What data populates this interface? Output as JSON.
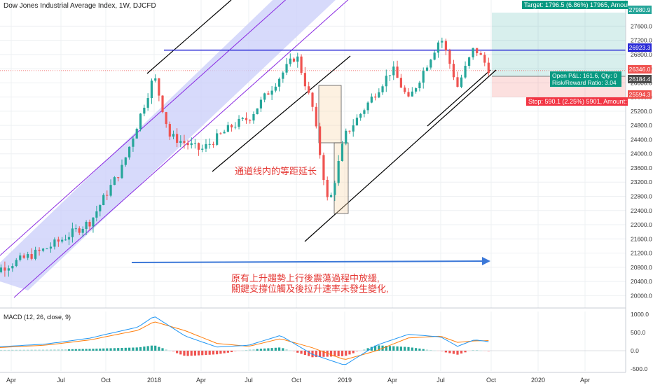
{
  "header": {
    "title": "Dow Jones Industrial Average Index, 1W, DJCFD"
  },
  "macd_label": "MACD (12, 26, close, 9)",
  "annotations": {
    "channel_note": "通道线内的等距延长",
    "summary_line1": "原有上升趨勢上行後震蕩過程中放緩,",
    "summary_line2": "關鍵支撐位觸及後拉升速率未發生變化,"
  },
  "position_tool": {
    "target_text": "Target: 1796.5 (6.86%) 17965, Amount:",
    "open_pl_text": "Open P&L: 161.6, Qty: 0",
    "risk_reward_text": "Risk/Reward Ratio: 3.04",
    "stop_text": "Stop: 590.1 (2.25%) 5901, Amount:"
  },
  "price_tags": [
    {
      "value": "27980.9",
      "color": "#26a69a"
    },
    {
      "value": "26923.3",
      "color": "#2a2ad6"
    },
    {
      "value": "26346.0",
      "color": "#ef5350"
    },
    {
      "value": "26184.4",
      "color": "#4a4a4a"
    },
    {
      "value": "25594.3",
      "color": "#ef5350"
    }
  ],
  "colors": {
    "up": "#26a69a",
    "down": "#ef5350",
    "channel": "#8a2be2",
    "channel_fill": "#c9cdfa",
    "hline": "#2a2ad6",
    "arrow": "#3c78d8",
    "macd_line": "#2196f3",
    "signal_line": "#ff7f0e"
  },
  "chart_data": [
    {
      "type": "candlestick",
      "title": "Dow Jones Industrial Average Index, 1W, DJCFD",
      "xlabel": "",
      "ylabel": "",
      "x_ticks": [
        "Apr",
        "Jul",
        "Oct",
        "2018",
        "Apr",
        "Jul",
        "Oct",
        "2019",
        "Apr",
        "Jul",
        "Oct",
        "2020",
        "Apr"
      ],
      "y_ticks": [
        20000,
        20400,
        20800,
        21200,
        21600,
        22000,
        22400,
        22800,
        23200,
        23600,
        24000,
        24400,
        24800,
        25200,
        25600,
        26000,
        26400,
        26800,
        27200,
        27600
      ],
      "ylim": [
        19750,
        28100
      ],
      "key_levels": {
        "horizontal_resistance": 26923.3,
        "last_close": 26346.0,
        "entry": 26184.4,
        "target": 27980.9,
        "stop": 25594.3
      },
      "anchors": [
        {
          "date": "2017-03",
          "price": 20700
        },
        {
          "date": "2017-06",
          "price": 21300
        },
        {
          "date": "2017-09",
          "price": 22100
        },
        {
          "date": "2017-11",
          "price": 23600
        },
        {
          "date": "2018-01",
          "price": 26200
        },
        {
          "date": "2018-02",
          "price": 24500
        },
        {
          "date": "2018-04",
          "price": 24100
        },
        {
          "date": "2018-06",
          "price": 24800
        },
        {
          "date": "2018-07",
          "price": 25000
        },
        {
          "date": "2018-10",
          "price": 26800
        },
        {
          "date": "2018-11",
          "price": 25300
        },
        {
          "date": "2018-12",
          "price": 22500
        },
        {
          "date": "2019-01",
          "price": 24500
        },
        {
          "date": "2019-04",
          "price": 26400
        },
        {
          "date": "2019-05",
          "price": 25500
        },
        {
          "date": "2019-07",
          "price": 27300
        },
        {
          "date": "2019-08",
          "price": 25900
        },
        {
          "date": "2019-09",
          "price": 27000
        },
        {
          "date": "2019-10",
          "price": 26300
        }
      ]
    },
    {
      "type": "line",
      "title": "MACD (12, 26, close, 9)",
      "y_ticks": [
        1000,
        500,
        0,
        -500
      ],
      "ylim": [
        -560,
        1080
      ],
      "series": [
        {
          "values_note": "MACD line",
          "anchors": [
            {
              "date": "2017-03",
              "price": 100
            },
            {
              "date": "2017-06",
              "price": 180
            },
            {
              "date": "2017-09",
              "price": 350
            },
            {
              "date": "2017-12",
              "price": 650
            },
            {
              "date": "2018-01",
              "price": 950
            },
            {
              "date": "2018-03",
              "price": 400
            },
            {
              "date": "2018-05",
              "price": 100
            },
            {
              "date": "2018-07",
              "price": 150
            },
            {
              "date": "2018-09",
              "price": 420
            },
            {
              "date": "2018-11",
              "price": -100
            },
            {
              "date": "2019-01",
              "price": -400
            },
            {
              "date": "2019-03",
              "price": 150
            },
            {
              "date": "2019-05",
              "price": 450
            },
            {
              "date": "2019-07",
              "price": 380
            },
            {
              "date": "2019-08",
              "price": 120
            },
            {
              "date": "2019-09",
              "price": 300
            },
            {
              "date": "2019-10",
              "price": 240
            }
          ]
        },
        {
          "values_note": "Signal line",
          "anchors": [
            {
              "date": "2017-03",
              "price": 80
            },
            {
              "date": "2017-06",
              "price": 150
            },
            {
              "date": "2017-09",
              "price": 300
            },
            {
              "date": "2017-12",
              "price": 560
            },
            {
              "date": "2018-01",
              "price": 800
            },
            {
              "date": "2018-03",
              "price": 550
            },
            {
              "date": "2018-05",
              "price": 200
            },
            {
              "date": "2018-07",
              "price": 120
            },
            {
              "date": "2018-09",
              "price": 330
            },
            {
              "date": "2018-11",
              "price": 80
            },
            {
              "date": "2019-01",
              "price": -250
            },
            {
              "date": "2019-03",
              "price": 0
            },
            {
              "date": "2019-05",
              "price": 350
            },
            {
              "date": "2019-07",
              "price": 400
            },
            {
              "date": "2019-08",
              "price": 230
            },
            {
              "date": "2019-09",
              "price": 270
            },
            {
              "date": "2019-10",
              "price": 280
            }
          ]
        }
      ]
    }
  ]
}
